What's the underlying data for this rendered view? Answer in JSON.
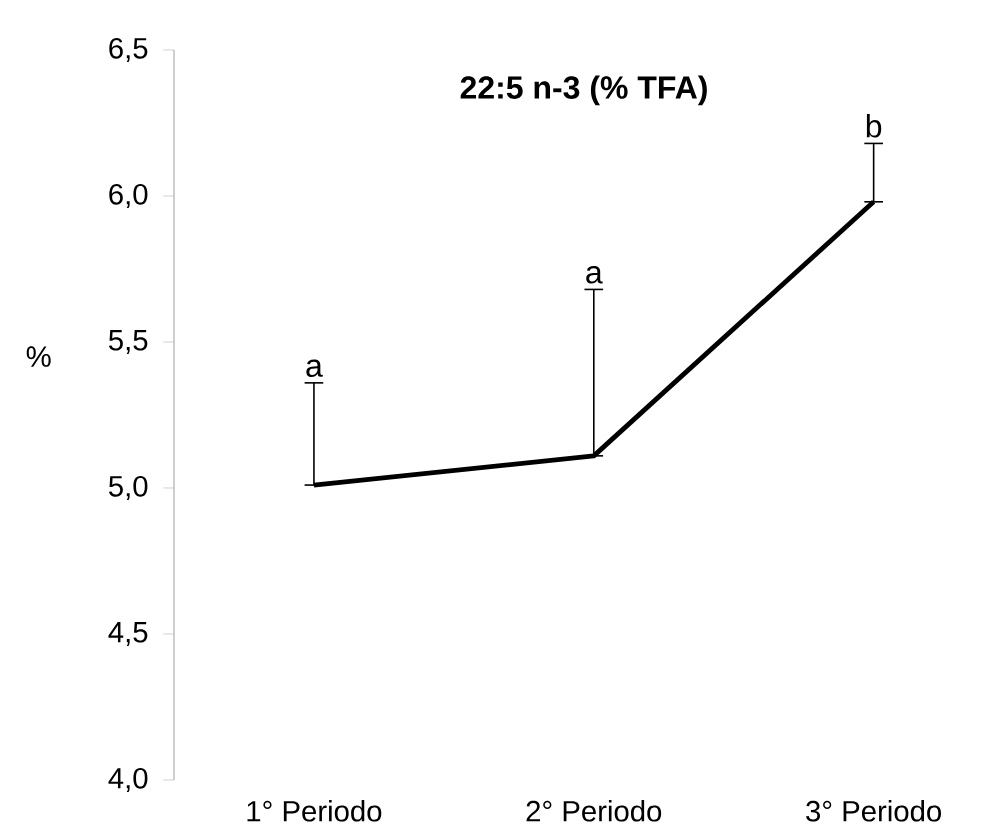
{
  "chart_data": {
    "type": "line",
    "title": "22:5 n-3 (% TFA)",
    "ylabel": "%",
    "categories": [
      "1° Periodo",
      "2° Periodo",
      "3° Periodo"
    ],
    "values": [
      5.01,
      5.11,
      5.98
    ],
    "errors": [
      [
        5.01,
        5.36
      ],
      [
        5.11,
        5.68
      ],
      [
        5.98,
        6.18
      ]
    ],
    "color": "#000000",
    "ylim": [
      4.0,
      6.5
    ],
    "yticks": [
      {
        "value": 4.0,
        "label": "4,0"
      },
      {
        "value": 4.5,
        "label": "4,5"
      },
      {
        "value": 5.0,
        "label": "5,0"
      },
      {
        "value": 5.5,
        "label": "5,5"
      },
      {
        "value": 6.0,
        "label": "6,0"
      },
      {
        "value": 6.5,
        "label": "6,5"
      }
    ],
    "annotations": [
      {
        "text": "a",
        "x": "1° Periodo",
        "y": 5.36
      },
      {
        "text": "a",
        "x": "2° Periodo",
        "y": 5.68
      },
      {
        "text": "b",
        "x": "3° Periodo",
        "y": 6.18
      }
    ],
    "grid": false,
    "marker": "none",
    "line_style": "solid"
  }
}
